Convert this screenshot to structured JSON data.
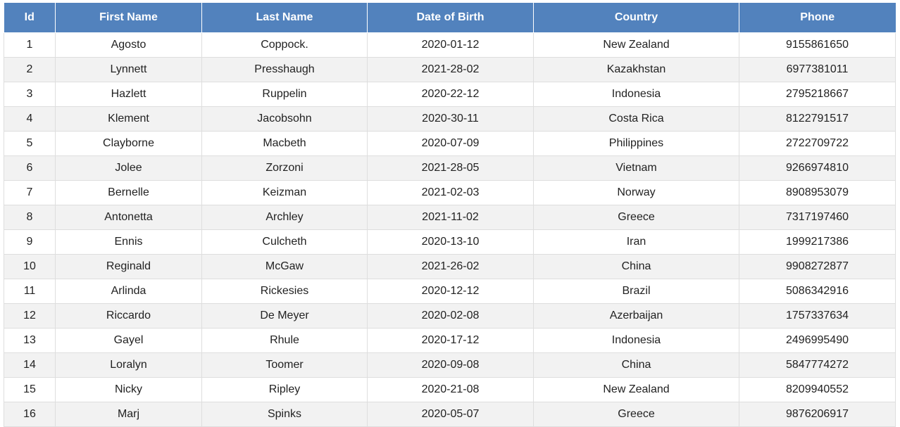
{
  "table": {
    "columns": [
      "Id",
      "First Name",
      "Last Name",
      "Date of Birth",
      "Country",
      "Phone"
    ],
    "rows": [
      [
        "1",
        "Agosto",
        "Coppock.",
        "2020-01-12",
        "New Zealand",
        "9155861650"
      ],
      [
        "2",
        "Lynnett",
        "Presshaugh",
        "2021-28-02",
        "Kazakhstan",
        "6977381011"
      ],
      [
        "3",
        "Hazlett",
        "Ruppelin",
        "2020-22-12",
        "Indonesia",
        "2795218667"
      ],
      [
        "4",
        "Klement",
        "Jacobsohn",
        "2020-30-11",
        "Costa Rica",
        "8122791517"
      ],
      [
        "5",
        "Clayborne",
        "Macbeth",
        "2020-07-09",
        "Philippines",
        "2722709722"
      ],
      [
        "6",
        "Jolee",
        "Zorzoni",
        "2021-28-05",
        "Vietnam",
        "9266974810"
      ],
      [
        "7",
        "Bernelle",
        "Keizman",
        "2021-02-03",
        "Norway",
        "8908953079"
      ],
      [
        "8",
        "Antonetta",
        "Archley",
        "2021-11-02",
        "Greece",
        "7317197460"
      ],
      [
        "9",
        "Ennis",
        "Culcheth",
        "2020-13-10",
        "Iran",
        "1999217386"
      ],
      [
        "10",
        "Reginald",
        "McGaw",
        "2021-26-02",
        "China",
        "9908272877"
      ],
      [
        "11",
        "Arlinda",
        "Rickesies",
        "2020-12-12",
        "Brazil",
        "5086342916"
      ],
      [
        "12",
        "Riccardo",
        "De Meyer",
        "2020-02-08",
        "Azerbaijan",
        "1757337634"
      ],
      [
        "13",
        "Gayel",
        "Rhule",
        "2020-17-12",
        "Indonesia",
        "2496995490"
      ],
      [
        "14",
        "Loralyn",
        "Toomer",
        "2020-09-08",
        "China",
        "5847774272"
      ],
      [
        "15",
        "Nicky",
        "Ripley",
        "2020-21-08",
        "New Zealand",
        "8209940552"
      ],
      [
        "16",
        "Marj",
        "Spinks",
        "2020-05-07",
        "Greece",
        "9876206917"
      ]
    ]
  },
  "colors": {
    "header_bg": "#5282bd",
    "header_text": "#ffffff",
    "row_alt_bg": "#f2f2f2",
    "row_bg": "#ffffff"
  }
}
